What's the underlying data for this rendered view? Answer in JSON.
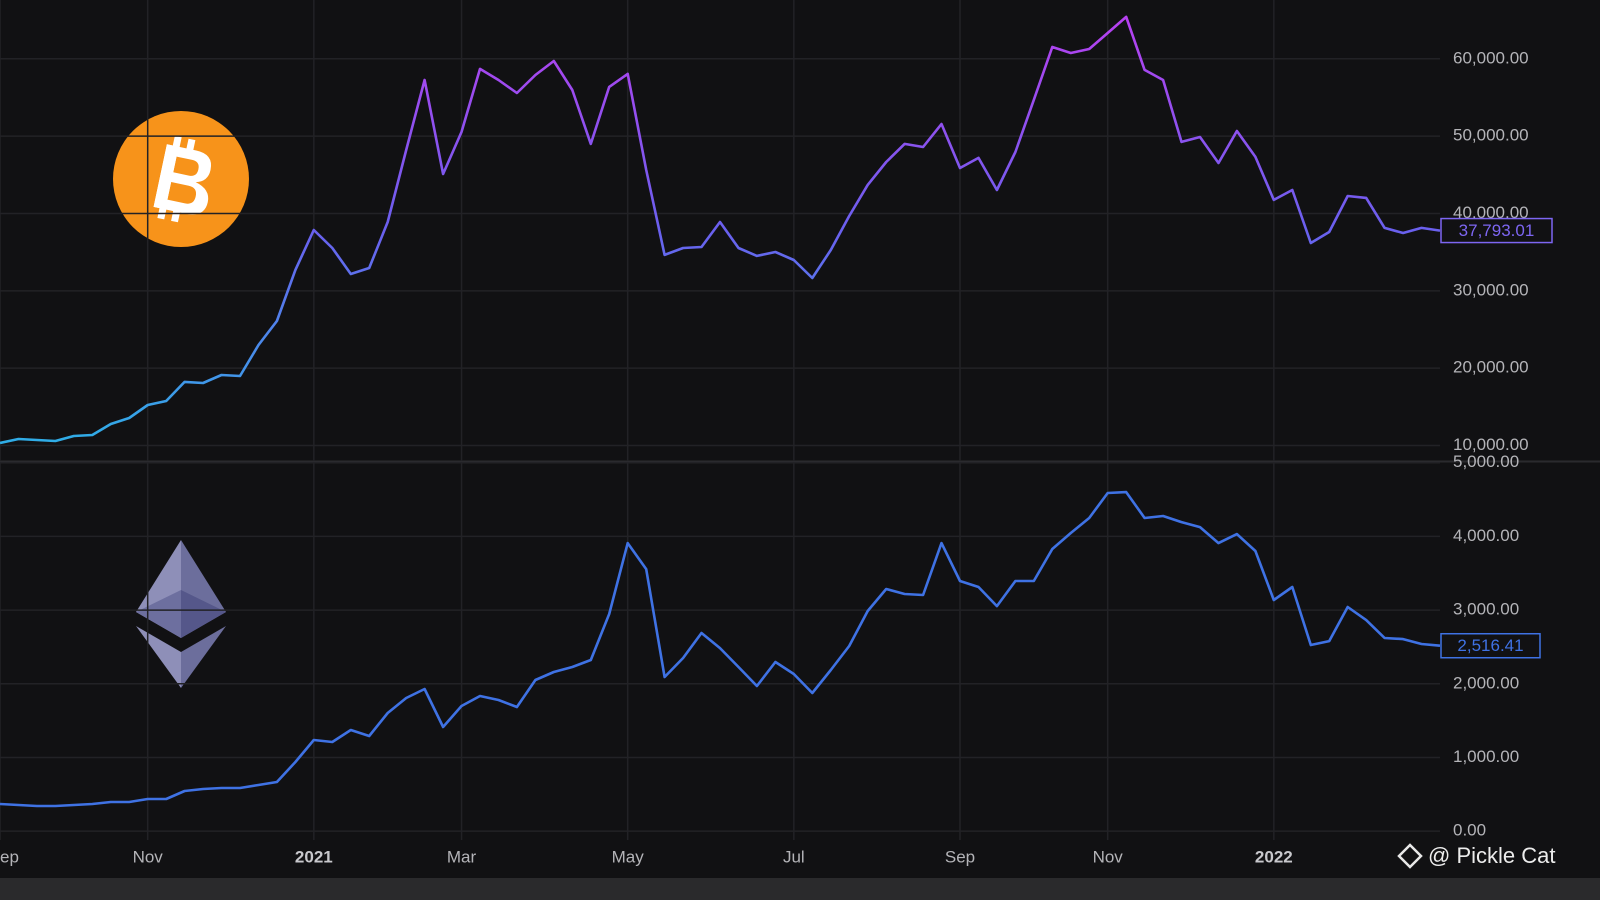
{
  "chart_data": [
    {
      "type": "line",
      "series_name_hidden": false,
      "gradient": [
        "#2ab4e6",
        "#6a60ee",
        "#bd3ef0"
      ],
      "box_color": "#7d66f2",
      "values": [
        10330,
        10850,
        10720,
        10590,
        11230,
        11360,
        12780,
        13560,
        15240,
        15760,
        18220,
        18090,
        19120,
        18990,
        23000,
        26100,
        32700,
        37870,
        35540,
        32180,
        32950,
        38900,
        48210,
        57260,
        45110,
        50540,
        58690,
        57260,
        55580,
        57910,
        59720,
        55970,
        48990,
        56360,
        58040,
        45630,
        34640,
        35540,
        35670,
        38900,
        35540,
        34510,
        35020,
        33990,
        31660,
        35280,
        39680,
        43690,
        46660,
        48990,
        48600,
        51570,
        45880,
        47180,
        43040,
        47950,
        54680,
        61530,
        60750,
        61270,
        63340,
        65410,
        58560,
        57260,
        49250,
        49890,
        46530,
        50670,
        47310,
        41750,
        43040,
        36190,
        37610,
        42260,
        42010,
        38130,
        37480,
        38130,
        37793.01
      ],
      "value_labels": [
        null,
        null,
        null,
        null,
        null,
        null,
        null,
        null,
        null,
        null,
        null,
        null,
        null,
        null,
        null,
        null,
        null,
        null,
        null,
        null,
        null,
        null,
        null,
        null,
        null,
        null,
        null,
        null,
        null,
        null,
        null,
        null,
        null,
        null,
        null,
        null,
        null,
        null,
        null,
        null,
        null,
        null,
        null,
        null,
        null,
        null,
        null,
        null,
        null,
        null,
        null,
        null,
        null,
        null,
        null,
        null,
        null,
        null,
        null,
        null,
        null,
        null,
        null,
        null,
        null,
        null,
        null,
        null,
        null,
        null,
        null,
        null,
        null,
        null,
        null,
        null,
        null,
        null,
        "37,793.01"
      ],
      "ylim": [
        8000,
        67600
      ],
      "yticks": [
        {
          "value": 10000,
          "label": "10,000.00"
        },
        {
          "value": 20000,
          "label": "20,000.00"
        },
        {
          "value": 30000,
          "label": "30,000.00"
        },
        {
          "value": 40000,
          "label": "40,000.00"
        },
        {
          "value": 50000,
          "label": "50,000.00"
        },
        {
          "value": 60000,
          "label": "60,000.00"
        }
      ],
      "grid": true
    },
    {
      "type": "line",
      "color": "#3f72e4",
      "box_color": "#3f72e4",
      "categories": [
        "ep",
        null,
        null,
        null,
        null,
        null,
        null,
        null,
        "Nov",
        null,
        null,
        null,
        null,
        null,
        null,
        null,
        null,
        "2021",
        null,
        null,
        null,
        null,
        null,
        null,
        null,
        "Mar",
        null,
        null,
        null,
        null,
        null,
        null,
        null,
        null,
        "May",
        null,
        null,
        null,
        null,
        null,
        null,
        null,
        null,
        "Jul",
        null,
        null,
        null,
        null,
        null,
        null,
        null,
        null,
        "Sep",
        null,
        null,
        null,
        null,
        null,
        null,
        null,
        "Nov",
        null,
        null,
        null,
        null,
        null,
        null,
        null,
        null,
        "2022",
        null,
        null,
        null,
        null,
        null,
        null,
        null,
        null,
        null
      ],
      "values": [
        369,
        355,
        341,
        341,
        355,
        369,
        396,
        396,
        436,
        436,
        545,
        572,
        586,
        586,
        626,
        667,
        938,
        1237,
        1210,
        1373,
        1291,
        1603,
        1807,
        1929,
        1413,
        1698,
        1834,
        1780,
        1685,
        2051,
        2160,
        2228,
        2323,
        2947,
        3910,
        3557,
        2092,
        2350,
        2689,
        2485,
        2228,
        1970,
        2296,
        2133,
        1875,
        2187,
        2513,
        2988,
        3286,
        3218,
        3205,
        3910,
        3395,
        3313,
        3055,
        3395,
        3395,
        3829,
        4046,
        4250,
        4589,
        4602,
        4250,
        4277,
        4195,
        4127,
        3910,
        4032,
        3802,
        3137,
        3313,
        2526,
        2580,
        3042,
        2865,
        2621,
        2607,
        2540,
        2516.41
      ],
      "value_labels": [
        null,
        null,
        null,
        null,
        null,
        null,
        null,
        null,
        null,
        null,
        null,
        null,
        null,
        null,
        null,
        null,
        null,
        null,
        null,
        null,
        null,
        null,
        null,
        null,
        null,
        null,
        null,
        null,
        null,
        null,
        null,
        null,
        null,
        null,
        null,
        null,
        null,
        null,
        null,
        null,
        null,
        null,
        null,
        null,
        null,
        null,
        null,
        null,
        null,
        null,
        null,
        null,
        null,
        null,
        null,
        null,
        null,
        null,
        null,
        null,
        null,
        null,
        null,
        null,
        null,
        null,
        null,
        null,
        null,
        null,
        null,
        null,
        null,
        null,
        null,
        null,
        null,
        null,
        "2,516.41"
      ],
      "ylim": [
        -120,
        5010
      ],
      "yticks": [
        {
          "value": 0,
          "label": "0.00"
        },
        {
          "value": 1000,
          "label": "1,000.00"
        },
        {
          "value": 2000,
          "label": "2,000.00"
        },
        {
          "value": 3000,
          "label": "3,000.00"
        },
        {
          "value": 4000,
          "label": "4,000.00"
        },
        {
          "value": 5000,
          "label": "5,000.00"
        }
      ],
      "grid": true
    }
  ],
  "watermark": "@ Pickle Cat"
}
